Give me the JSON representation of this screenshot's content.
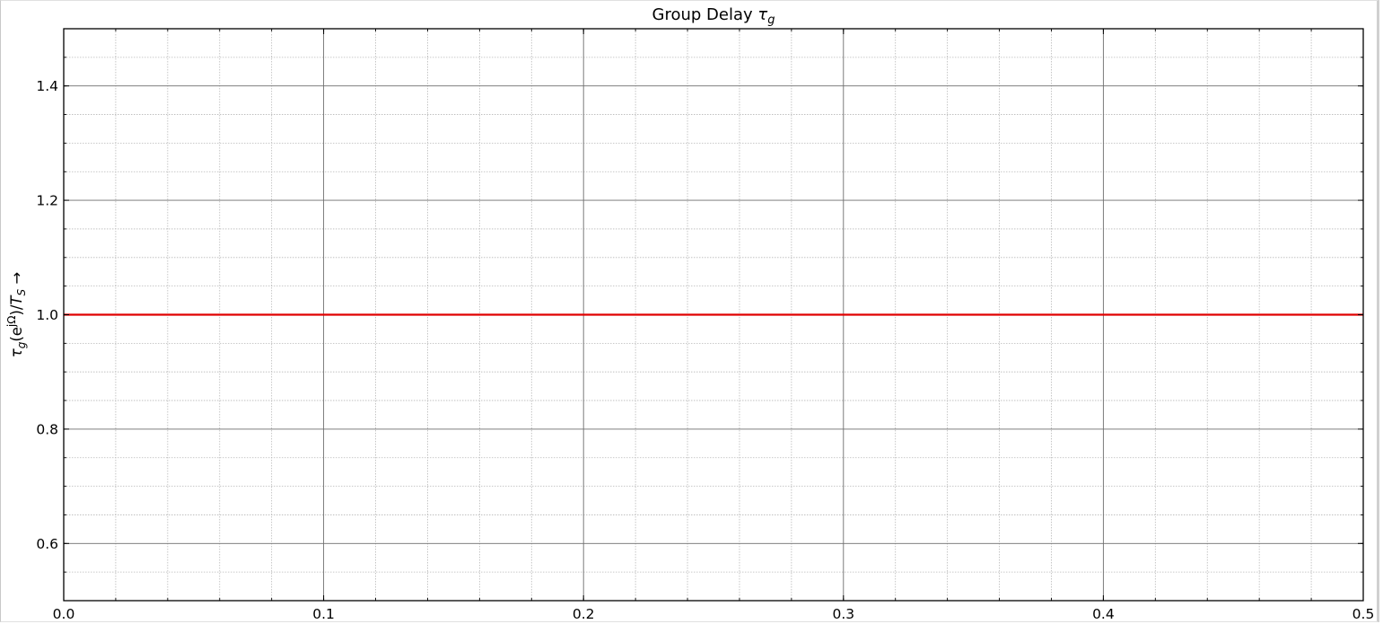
{
  "chart_data": {
    "type": "line",
    "title": {
      "main": "Group Delay ",
      "symbol": "τ",
      "subscript": "g"
    },
    "ylabel": {
      "symbol": "τ",
      "sub": "g",
      "paren_open": "(e",
      "sup": "jΩ",
      "paren_close": ")/",
      "t": "T",
      "t_sub": "S",
      "arrow": " →"
    },
    "xlim": [
      0.0,
      0.5
    ],
    "ylim": [
      0.5,
      1.5
    ],
    "x_major_ticks": [
      0.0,
      0.1,
      0.2,
      0.3,
      0.4,
      0.5
    ],
    "x_tick_labels": [
      "0.0",
      "0.1",
      "0.2",
      "0.3",
      "0.4",
      "0.5"
    ],
    "x_minor_step": 0.02,
    "y_major_ticks": [
      0.6,
      0.8,
      1.0,
      1.2,
      1.4
    ],
    "y_tick_labels": [
      "0.6",
      "0.8",
      "1.0",
      "1.2",
      "1.4"
    ],
    "y_minor_step": 0.05,
    "grid": true,
    "series": [
      {
        "x": [
          0.0,
          0.5
        ],
        "y": [
          1.0,
          1.0
        ],
        "color": "#e00000"
      }
    ]
  }
}
